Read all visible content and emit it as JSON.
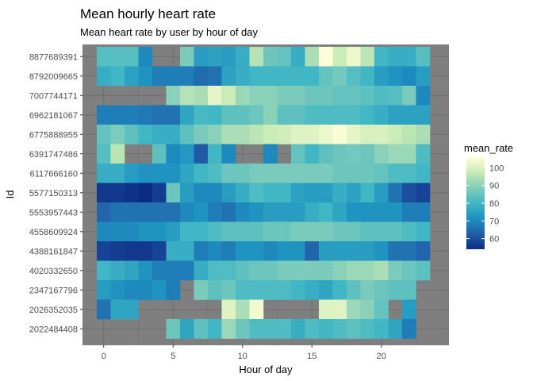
{
  "chart_data": {
    "type": "heatmap",
    "title": "Mean hourly heart rate",
    "subtitle": "Mean heart rate by user by hour of day",
    "xlabel": "Hour of day",
    "ylabel": "Id",
    "x_ticks": [
      0,
      5,
      10,
      15,
      20
    ],
    "xlim": [
      -1.5,
      24.5
    ],
    "hours": [
      0,
      1,
      2,
      3,
      4,
      5,
      6,
      7,
      8,
      9,
      10,
      11,
      12,
      13,
      14,
      15,
      16,
      17,
      18,
      19,
      20,
      21,
      22,
      23
    ],
    "legend_title": "mean_rate",
    "legend_ticks": [
      60,
      70,
      80,
      90,
      100
    ],
    "color_range": [
      54,
      106
    ],
    "colors": {
      "panel_background": "#7f7f7f",
      "grid": "#6e6e6e",
      "low": "#0c2c84",
      "high": "#ffffd9"
    },
    "rows": [
      {
        "id": "8877689391",
        "values": [
          83,
          83,
          83,
          70,
          null,
          null,
          88,
          74,
          75,
          74,
          78,
          95,
          86,
          85,
          78,
          94,
          106,
          98,
          103,
          96,
          80,
          78,
          78,
          83
        ]
      },
      {
        "id": "8792009665",
        "values": [
          78,
          80,
          75,
          72,
          68,
          68,
          68,
          65,
          66,
          75,
          78,
          80,
          80,
          80,
          80,
          80,
          85,
          87,
          83,
          80,
          74,
          72,
          70,
          74
        ]
      },
      {
        "id": "7007744171",
        "values": [
          null,
          null,
          null,
          null,
          null,
          90,
          95,
          94,
          102,
          98,
          92,
          90,
          90,
          88,
          88,
          86,
          86,
          85,
          85,
          84,
          82,
          83,
          88,
          70
        ]
      },
      {
        "id": "6962181067",
        "values": [
          68,
          68,
          68,
          67,
          66,
          66,
          76,
          81,
          80,
          84,
          84,
          86,
          90,
          84,
          84,
          82,
          82,
          82,
          82,
          80,
          78,
          75,
          75,
          75
        ]
      },
      {
        "id": "6775888955",
        "values": [
          85,
          88,
          84,
          80,
          78,
          78,
          84,
          88,
          90,
          94,
          94,
          96,
          98,
          99,
          101,
          101,
          103,
          105,
          102,
          100,
          100,
          98,
          96,
          94
        ]
      },
      {
        "id": "6391747486",
        "values": [
          83,
          96,
          null,
          null,
          84,
          70,
          73,
          62,
          80,
          70,
          null,
          null,
          70,
          null,
          85,
          80,
          84,
          86,
          87,
          86,
          90,
          92,
          92,
          82
        ]
      },
      {
        "id": "6117666160",
        "values": [
          78,
          78,
          74,
          72,
          72,
          72,
          76,
          80,
          82,
          86,
          86,
          88,
          88,
          88,
          88,
          88,
          88,
          86,
          86,
          86,
          85,
          82,
          82,
          80
        ]
      },
      {
        "id": "5577150313",
        "values": [
          56,
          56,
          55,
          54,
          57,
          86,
          74,
          70,
          70,
          74,
          78,
          82,
          80,
          80,
          75,
          74,
          74,
          78,
          75,
          80,
          74,
          66,
          60,
          58
        ]
      },
      {
        "id": "5553957443",
        "values": [
          64,
          66,
          66,
          66,
          66,
          66,
          70,
          72,
          68,
          66,
          70,
          72,
          74,
          74,
          74,
          78,
          80,
          76,
          72,
          72,
          72,
          72,
          68,
          68
        ]
      },
      {
        "id": "4558609924",
        "values": [
          70,
          70,
          70,
          72,
          72,
          74,
          80,
          80,
          82,
          84,
          84,
          84,
          86,
          86,
          88,
          88,
          88,
          86,
          86,
          84,
          84,
          84,
          82,
          80
        ]
      },
      {
        "id": "4388161847",
        "values": [
          58,
          57,
          56,
          56,
          58,
          78,
          78,
          68,
          70,
          68,
          72,
          72,
          70,
          72,
          72,
          64,
          74,
          74,
          74,
          74,
          72,
          66,
          66,
          64
        ]
      },
      {
        "id": "4020332650",
        "values": [
          80,
          78,
          76,
          72,
          68,
          68,
          68,
          78,
          82,
          82,
          84,
          86,
          86,
          88,
          88,
          88,
          88,
          90,
          92,
          92,
          94,
          88,
          86,
          84
        ]
      },
      {
        "id": "2347167796",
        "values": [
          74,
          72,
          70,
          70,
          72,
          68,
          null,
          88,
          84,
          86,
          82,
          82,
          82,
          82,
          80,
          78,
          76,
          80,
          84,
          88,
          86,
          84,
          84,
          null
        ]
      },
      {
        "id": "2026352035",
        "values": [
          66,
          76,
          76,
          null,
          null,
          null,
          null,
          null,
          null,
          101,
          94,
          104,
          null,
          null,
          null,
          null,
          101,
          101,
          92,
          90,
          85,
          null,
          74,
          null
        ]
      },
      {
        "id": "2022484408",
        "values": [
          null,
          null,
          null,
          null,
          null,
          86,
          76,
          84,
          80,
          92,
          86,
          82,
          82,
          82,
          78,
          82,
          80,
          82,
          84,
          82,
          80,
          76,
          68,
          null
        ]
      }
    ]
  }
}
